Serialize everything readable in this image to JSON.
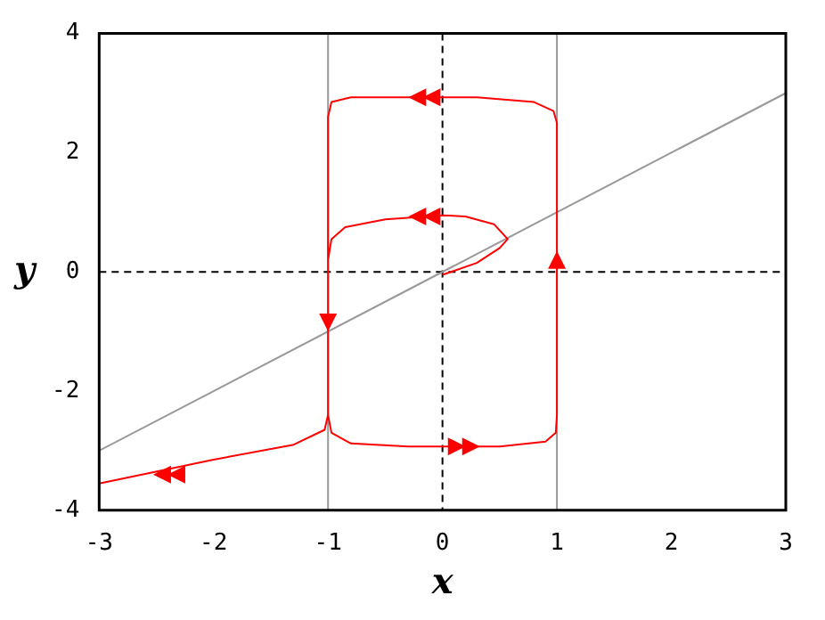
{
  "chart_data": {
    "type": "line",
    "xlabel": "x",
    "ylabel": "y",
    "xlim": [
      -3,
      3
    ],
    "ylim": [
      -4,
      4
    ],
    "xticks": [
      -3,
      -2,
      -1,
      0,
      1,
      2,
      3
    ],
    "yticks": [
      -4,
      -2,
      0,
      2,
      4
    ],
    "grid": false,
    "legend": false,
    "marker": "none",
    "line_style": "solid",
    "series": [
      {
        "color": "#ff0000",
        "x": [
          0,
          0.3,
          0.5,
          0.57,
          0.45,
          0.2,
          0,
          -0.5,
          -0.85,
          -0.97,
          -1,
          -1,
          -0.97,
          -0.8,
          -0.3,
          0.5,
          0.9,
          0.99,
          1,
          1,
          0.97,
          0.8,
          0.3,
          -0.8,
          -0.97,
          -1,
          -1,
          -1.03,
          -1.3,
          -2,
          -3
        ],
        "values": [
          -0.05,
          0.15,
          0.4,
          0.55,
          0.8,
          0.93,
          0.95,
          0.88,
          0.75,
          0.55,
          0.2,
          -2.4,
          -2.7,
          -2.88,
          -2.93,
          -2.93,
          -2.85,
          -2.7,
          -2.4,
          2.5,
          2.7,
          2.85,
          2.93,
          2.93,
          2.85,
          2.6,
          -2.4,
          -2.65,
          -2.9,
          -3.15,
          -3.55
        ]
      },
      {
        "color": "#999999",
        "x": [
          -3,
          3
        ],
        "values": [
          -3,
          3
        ]
      }
    ],
    "ref_lines": [
      {
        "axis": "x",
        "value": -1,
        "color": "#999999",
        "line_style": "solid"
      },
      {
        "axis": "x",
        "value": 1,
        "color": "#999999",
        "line_style": "solid"
      },
      {
        "axis": "x",
        "value": 0,
        "color": "#000000",
        "line_style": "dashed"
      },
      {
        "axis": "y",
        "value": 0,
        "color": "#000000",
        "line_style": "dashed"
      }
    ]
  }
}
